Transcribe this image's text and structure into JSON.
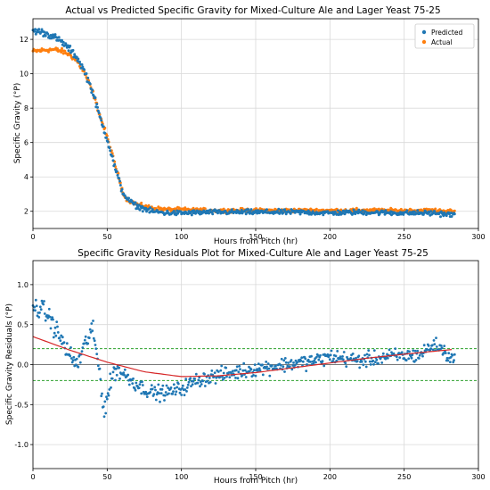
{
  "chart_data": [
    {
      "type": "scatter",
      "title": "Actual vs Predicted Specific Gravity for Mixed-Culture Ale and Lager Yeast 75-25",
      "xlabel": "Hours from Pitch (hr)",
      "ylabel": "Specific Gravity (°P)",
      "xlim": [
        0,
        300
      ],
      "ylim": [
        1.0,
        13.2
      ],
      "xticks": [
        0,
        50,
        100,
        150,
        200,
        250,
        300
      ],
      "yticks": [
        2,
        4,
        6,
        8,
        10,
        12
      ],
      "grid": true,
      "legend_position": "top-right",
      "series": [
        {
          "name": "Predicted",
          "color": "#1f77b4",
          "x": [
            0,
            5,
            10,
            15,
            20,
            25,
            30,
            35,
            40,
            45,
            50,
            55,
            60,
            62,
            65,
            70,
            80,
            90,
            100,
            120,
            150,
            180,
            200,
            220,
            250,
            270,
            283
          ],
          "y": [
            12.5,
            12.45,
            12.3,
            12.1,
            11.8,
            11.4,
            10.9,
            10.1,
            9.0,
            7.5,
            6.2,
            4.6,
            3.2,
            2.9,
            2.6,
            2.3,
            2.0,
            1.9,
            1.9,
            1.95,
            1.95,
            1.95,
            1.9,
            1.95,
            1.9,
            1.9,
            1.8
          ]
        },
        {
          "name": "Actual",
          "color": "#ff7f0e",
          "x": [
            0,
            5,
            10,
            15,
            20,
            25,
            30,
            35,
            40,
            45,
            50,
            55,
            60,
            62,
            65,
            70,
            80,
            90,
            100,
            120,
            150,
            180,
            200,
            220,
            250,
            270,
            283
          ],
          "y": [
            11.3,
            11.35,
            11.4,
            11.4,
            11.3,
            11.1,
            10.7,
            10.0,
            9.0,
            7.6,
            6.3,
            4.8,
            3.3,
            2.8,
            2.6,
            2.4,
            2.2,
            2.1,
            2.1,
            2.05,
            2.05,
            2.05,
            2.05,
            2.05,
            2.05,
            2.05,
            2.0
          ]
        }
      ]
    },
    {
      "type": "scatter",
      "title": "Specific Gravity Residuals Plot for Mixed-Culture Ale and Lager Yeast 75-25",
      "xlabel": "Hours from Pitch (hr)",
      "ylabel": "Specific Gravity Residuals (°P)",
      "xlim": [
        0,
        300
      ],
      "ylim": [
        -1.3,
        1.3
      ],
      "xticks": [
        0,
        50,
        100,
        150,
        200,
        250,
        300
      ],
      "yticks": [
        -1.0,
        -0.5,
        0.0,
        0.5,
        1.0
      ],
      "grid": true,
      "threshold_lines": [
        0.2,
        -0.2
      ],
      "zero_line": 0,
      "residuals": {
        "color": "#1f77b4",
        "x": [
          0,
          5,
          10,
          15,
          20,
          25,
          30,
          35,
          40,
          45,
          48,
          50,
          55,
          60,
          70,
          80,
          90,
          100,
          110,
          120,
          130,
          150,
          170,
          190,
          200,
          220,
          240,
          260,
          270,
          275,
          283
        ],
        "y": [
          0.72,
          0.7,
          0.62,
          0.45,
          0.28,
          0.1,
          0.0,
          0.25,
          0.45,
          -0.1,
          -0.6,
          -0.4,
          -0.05,
          -0.1,
          -0.25,
          -0.35,
          -0.35,
          -0.3,
          -0.2,
          -0.15,
          -0.12,
          -0.05,
          0.0,
          0.05,
          0.1,
          0.05,
          0.1,
          0.12,
          0.25,
          0.2,
          0.05
        ]
      },
      "trend": {
        "color": "#d62728",
        "x": [
          0,
          25,
          50,
          75,
          100,
          125,
          150,
          175,
          200,
          225,
          250,
          283
        ],
        "y": [
          0.35,
          0.18,
          0.03,
          -0.09,
          -0.15,
          -0.14,
          -0.1,
          -0.04,
          0.02,
          0.08,
          0.13,
          0.19
        ]
      }
    }
  ]
}
